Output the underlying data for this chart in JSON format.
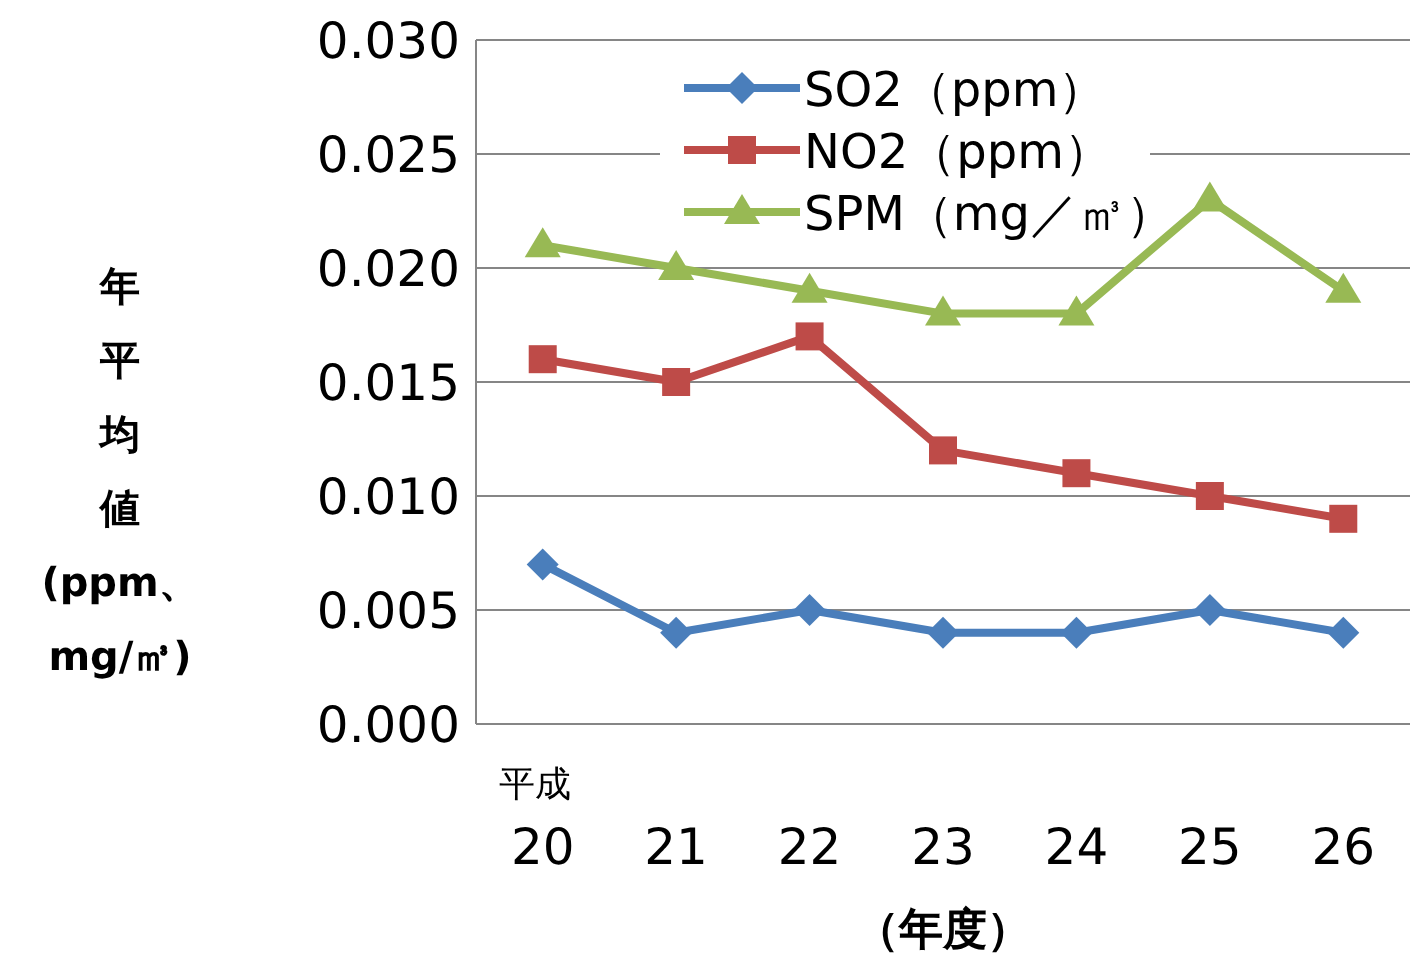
{
  "chart_data": {
    "type": "line",
    "categories": [
      "平成\n20",
      "21",
      "22",
      "23",
      "24",
      "25",
      "26"
    ],
    "xlabel": "（年度）",
    "ylabel": "年平均値(ppm、mg/㎥)",
    "ylim": [
      0,
      0.03
    ],
    "yticks": [
      {
        "value": 0,
        "label": "0.000"
      },
      {
        "value": 0.005,
        "label": "0.005"
      },
      {
        "value": 0.01,
        "label": "0.010"
      },
      {
        "value": 0.015,
        "label": "0.015"
      },
      {
        "value": 0.02,
        "label": "0.020"
      },
      {
        "value": 0.025,
        "label": "0.025"
      },
      {
        "value": 0.03,
        "label": "0.030"
      }
    ],
    "grid": "y",
    "legend": "top",
    "series": [
      {
        "name": "SO2（ppm）",
        "color": "#4a7ebb",
        "marker": "diamond",
        "values": [
          0.007,
          0.004,
          0.005,
          0.004,
          0.004,
          0.005,
          0.004
        ]
      },
      {
        "name": "NO2（ppm）",
        "color": "#be4b48",
        "marker": "square",
        "values": [
          0.016,
          0.015,
          0.017,
          0.012,
          0.011,
          0.01,
          0.009
        ]
      },
      {
        "name": "SPM（mg／㎥）",
        "color": "#98b954",
        "marker": "triangle",
        "values": [
          0.021,
          0.02,
          0.019,
          0.018,
          0.018,
          0.023,
          0.019
        ]
      }
    ]
  }
}
